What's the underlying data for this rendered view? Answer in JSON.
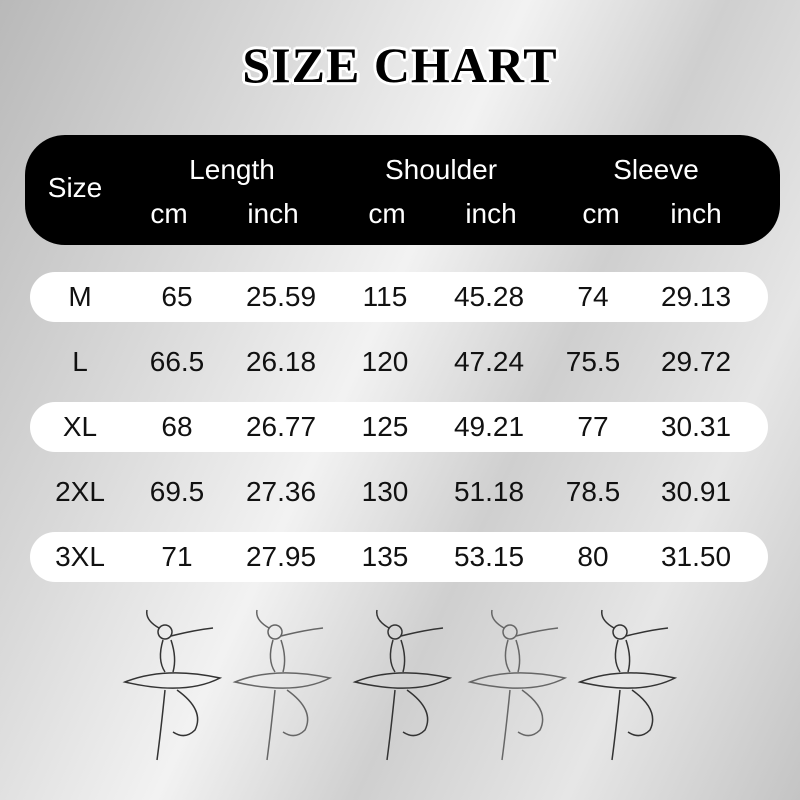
{
  "title": "SIZE CHART",
  "header": {
    "size": "Size",
    "groups": [
      "Length",
      "Shoulder",
      "Sleeve"
    ],
    "units": [
      "cm",
      "inch",
      "cm",
      "inch",
      "cm",
      "inch"
    ]
  },
  "rows": [
    [
      "M",
      "65",
      "25.59",
      "115",
      "45.28",
      "74",
      "29.13"
    ],
    [
      "L",
      "66.5",
      "26.18",
      "120",
      "47.24",
      "75.5",
      "29.72"
    ],
    [
      "XL",
      "68",
      "26.77",
      "125",
      "49.21",
      "77",
      "30.31"
    ],
    [
      "2XL",
      "69.5",
      "27.36",
      "130",
      "51.18",
      "78.5",
      "30.91"
    ],
    [
      "3XL",
      "71",
      "27.95",
      "135",
      "53.15",
      "80",
      "31.50"
    ]
  ],
  "decor": {
    "icon": "ballerina-icon",
    "count": 5
  }
}
